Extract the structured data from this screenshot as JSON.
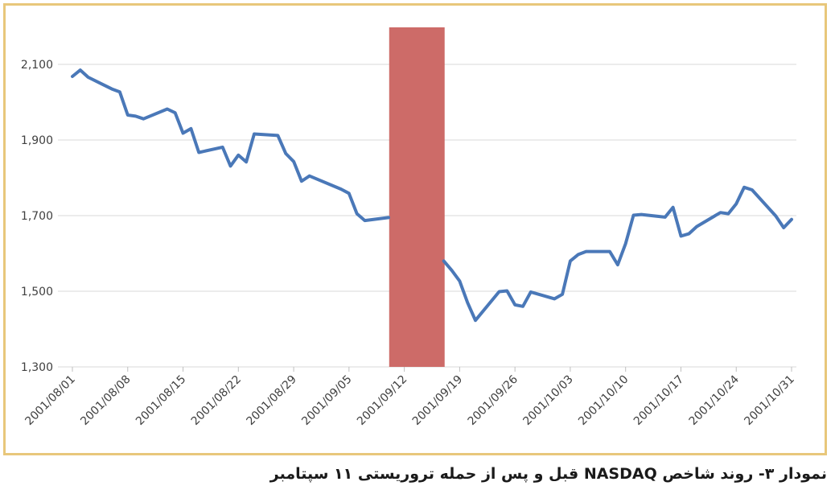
{
  "caption": "نمودار ۳- روند شاخص NASDAQ قبل و پس از حمله تروریستی ۱۱ سپتامبر",
  "colors": {
    "line": "#4a78b8",
    "highlight": "#cd6b68",
    "grid": "#d9d9d9",
    "frame": "#e8c77b"
  },
  "chart_data": {
    "type": "line",
    "title": "",
    "xlabel": "",
    "ylabel": "",
    "x_range": [
      "2001/08/01",
      "2001/10/31"
    ],
    "ylim": [
      1300,
      2100
    ],
    "y_ticks": [
      1300,
      1500,
      1700,
      1900,
      2100
    ],
    "y_tick_labels": [
      "1,300",
      "1,500",
      "1,700",
      "1,900",
      "2,100"
    ],
    "x_ticks": [
      "2001/08/01",
      "2001/08/08",
      "2001/08/15",
      "2001/08/22",
      "2001/08/29",
      "2001/09/05",
      "2001/09/12",
      "2001/09/19",
      "2001/09/26",
      "2001/10/03",
      "2001/10/10",
      "2001/10/17",
      "2001/10/24",
      "2001/10/31"
    ],
    "grid": true,
    "highlight_band": {
      "from": "2001/09/11",
      "to": "2001/09/17"
    },
    "series": [
      {
        "points": [
          [
            "2001/08/01",
            2068
          ],
          [
            "2001/08/02",
            2085
          ],
          [
            "2001/08/03",
            2066
          ],
          [
            "2001/08/06",
            2035
          ],
          [
            "2001/08/07",
            2027
          ],
          [
            "2001/08/08",
            1966
          ],
          [
            "2001/08/09",
            1963
          ],
          [
            "2001/08/10",
            1956
          ],
          [
            "2001/08/13",
            1982
          ],
          [
            "2001/08/14",
            1972
          ],
          [
            "2001/08/15",
            1918
          ],
          [
            "2001/08/16",
            1930
          ],
          [
            "2001/08/17",
            1867
          ],
          [
            "2001/08/20",
            1881
          ],
          [
            "2001/08/21",
            1831
          ],
          [
            "2001/08/22",
            1860
          ],
          [
            "2001/08/23",
            1842
          ],
          [
            "2001/08/24",
            1916
          ],
          [
            "2001/08/27",
            1912
          ],
          [
            "2001/08/28",
            1864
          ],
          [
            "2001/08/29",
            1843
          ],
          [
            "2001/08/30",
            1791
          ],
          [
            "2001/08/31",
            1805
          ],
          [
            "2001/09/04",
            1770
          ],
          [
            "2001/09/05",
            1759
          ],
          [
            "2001/09/06",
            1705
          ],
          [
            "2001/09/07",
            1687
          ],
          [
            "2001/09/10",
            1695
          ]
        ]
      },
      {
        "points": [
          [
            "2001/09/17",
            1580
          ],
          [
            "2001/09/18",
            1555
          ],
          [
            "2001/09/19",
            1527
          ],
          [
            "2001/09/20",
            1470
          ],
          [
            "2001/09/21",
            1423
          ],
          [
            "2001/09/24",
            1499
          ],
          [
            "2001/09/25",
            1501
          ],
          [
            "2001/09/26",
            1464
          ],
          [
            "2001/09/27",
            1460
          ],
          [
            "2001/09/28",
            1498
          ],
          [
            "2001/10/01",
            1480
          ],
          [
            "2001/10/02",
            1492
          ],
          [
            "2001/10/03",
            1580
          ],
          [
            "2001/10/04",
            1597
          ],
          [
            "2001/10/05",
            1605
          ],
          [
            "2001/10/08",
            1605
          ],
          [
            "2001/10/09",
            1570
          ],
          [
            "2001/10/10",
            1626
          ],
          [
            "2001/10/11",
            1701
          ],
          [
            "2001/10/12",
            1703
          ],
          [
            "2001/10/15",
            1696
          ],
          [
            "2001/10/16",
            1722
          ],
          [
            "2001/10/17",
            1646
          ],
          [
            "2001/10/18",
            1652
          ],
          [
            "2001/10/19",
            1671
          ],
          [
            "2001/10/22",
            1708
          ],
          [
            "2001/10/23",
            1705
          ],
          [
            "2001/10/24",
            1731
          ],
          [
            "2001/10/25",
            1775
          ],
          [
            "2001/10/26",
            1768
          ],
          [
            "2001/10/29",
            1699
          ],
          [
            "2001/10/30",
            1668
          ],
          [
            "2001/10/31",
            1690
          ]
        ]
      }
    ]
  }
}
